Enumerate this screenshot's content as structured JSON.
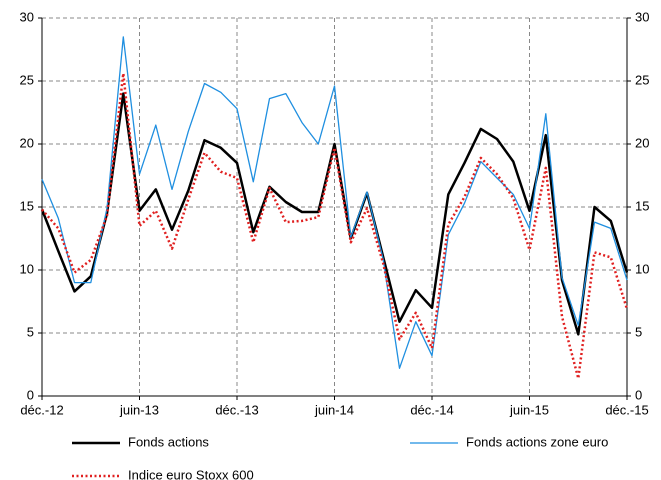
{
  "chart_data": {
    "type": "line",
    "categories": [
      "déc.-12",
      null,
      null,
      null,
      null,
      null,
      "juin-13",
      null,
      null,
      null,
      null,
      null,
      "déc.-13",
      null,
      null,
      null,
      null,
      null,
      "juin-14",
      null,
      null,
      null,
      null,
      null,
      "déc.-14",
      null,
      null,
      null,
      null,
      null,
      "juin-15",
      null,
      null,
      null,
      null,
      null,
      "déc.-15"
    ],
    "series": [
      {
        "name": "Fonds actions",
        "color": "#000000",
        "style": "solid",
        "width": 2.5,
        "values": [
          14.8,
          11.5,
          8.3,
          9.5,
          14.5,
          24.0,
          14.7,
          16.4,
          13.2,
          16.3,
          20.3,
          19.7,
          18.5,
          13.0,
          16.6,
          15.4,
          14.6,
          14.6,
          20.0,
          12.5,
          16.1,
          11.0,
          5.9,
          8.4,
          7.0,
          16.0,
          18.5,
          21.2,
          20.4,
          18.6,
          14.7,
          20.7,
          9.2,
          4.9,
          15.0,
          13.9,
          9.8
        ]
      },
      {
        "name": "Fonds actions zone euro",
        "color": "#1f8fe0",
        "style": "solid",
        "width": 1.3,
        "values": [
          17.2,
          14.1,
          9.0,
          9.0,
          14.9,
          28.5,
          17.6,
          21.5,
          16.4,
          21.0,
          24.8,
          24.1,
          22.8,
          17.0,
          23.6,
          24.0,
          21.7,
          20.0,
          24.6,
          12.6,
          16.2,
          10.8,
          2.2,
          5.9,
          3.2,
          12.8,
          15.3,
          18.6,
          17.3,
          16.0,
          13.3,
          22.4,
          9.4,
          5.6,
          13.8,
          13.3,
          9.2
        ]
      },
      {
        "name": "Indice euro Stoxx 600",
        "color": "#e02020",
        "style": "dotted",
        "width": 2.5,
        "values": [
          14.8,
          13.3,
          9.8,
          10.8,
          14.3,
          25.6,
          13.5,
          14.7,
          11.7,
          15.6,
          19.3,
          17.8,
          17.3,
          12.2,
          16.5,
          13.8,
          13.9,
          14.2,
          19.7,
          12.2,
          14.9,
          10.5,
          4.5,
          6.6,
          3.8,
          13.6,
          15.8,
          18.9,
          17.6,
          15.7,
          11.6,
          18.1,
          6.3,
          1.4,
          11.4,
          11.0,
          6.9
        ]
      }
    ],
    "ylim": [
      0,
      30
    ],
    "yticks": [
      0,
      5,
      10,
      15,
      20,
      25,
      30
    ],
    "y2lim": [
      0,
      30
    ],
    "y2ticks": [
      0,
      5,
      10,
      15,
      20,
      25,
      30
    ],
    "grid": true
  }
}
